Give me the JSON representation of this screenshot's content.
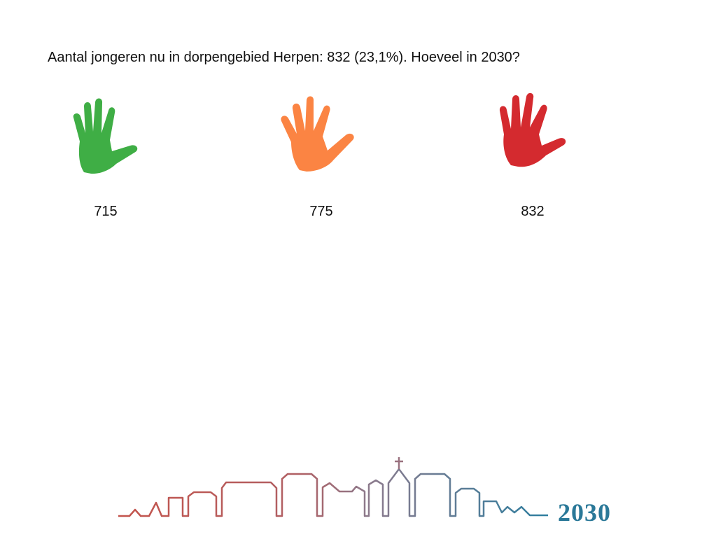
{
  "question": "Aantal jongeren nu in dorpengebied Herpen: 832 (23,1%). Hoeveel in 2030?",
  "options": [
    {
      "value": "715",
      "icon": "hand-icon",
      "color": "#3fae45"
    },
    {
      "value": "775",
      "icon": "hand-icon",
      "color": "#fb8443"
    },
    {
      "value": "832",
      "icon": "hand-icon",
      "color": "#d42a2f"
    }
  ],
  "logo": {
    "text": "2030",
    "colors": {
      "left": "#c4544c",
      "mid": "#9a7280",
      "right": "#2f7fa0",
      "text": "#2a7898"
    }
  }
}
